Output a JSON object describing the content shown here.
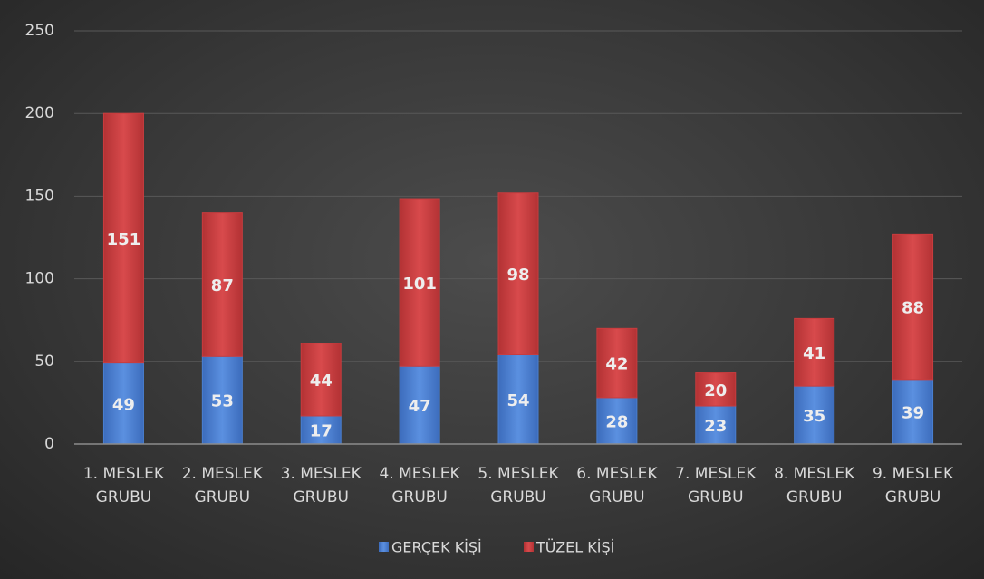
{
  "chart_data": {
    "type": "stacked_bar",
    "categories": [
      "1. MESLEK GRUBU",
      "2. MESLEK GRUBU",
      "3. MESLEK GRUBU",
      "4. MESLEK GRUBU",
      "5. MESLEK GRUBU",
      "6. MESLEK GRUBU",
      "7. MESLEK GRUBU",
      "8. MESLEK GRUBU",
      "9. MESLEK GRUBU"
    ],
    "series": [
      {
        "name": "GERÇEK KİŞİ",
        "color": "#4a7fd0",
        "values": [
          49,
          53,
          17,
          47,
          54,
          28,
          23,
          35,
          39
        ]
      },
      {
        "name": "TÜZEL KİŞİ",
        "color": "#c83c3e",
        "values": [
          151,
          87,
          44,
          101,
          98,
          42,
          20,
          41,
          88
        ]
      }
    ],
    "ylim": [
      0,
      250
    ],
    "yticks": [
      0,
      50,
      100,
      150,
      200,
      250
    ],
    "grid": true,
    "legend": "bottom"
  }
}
